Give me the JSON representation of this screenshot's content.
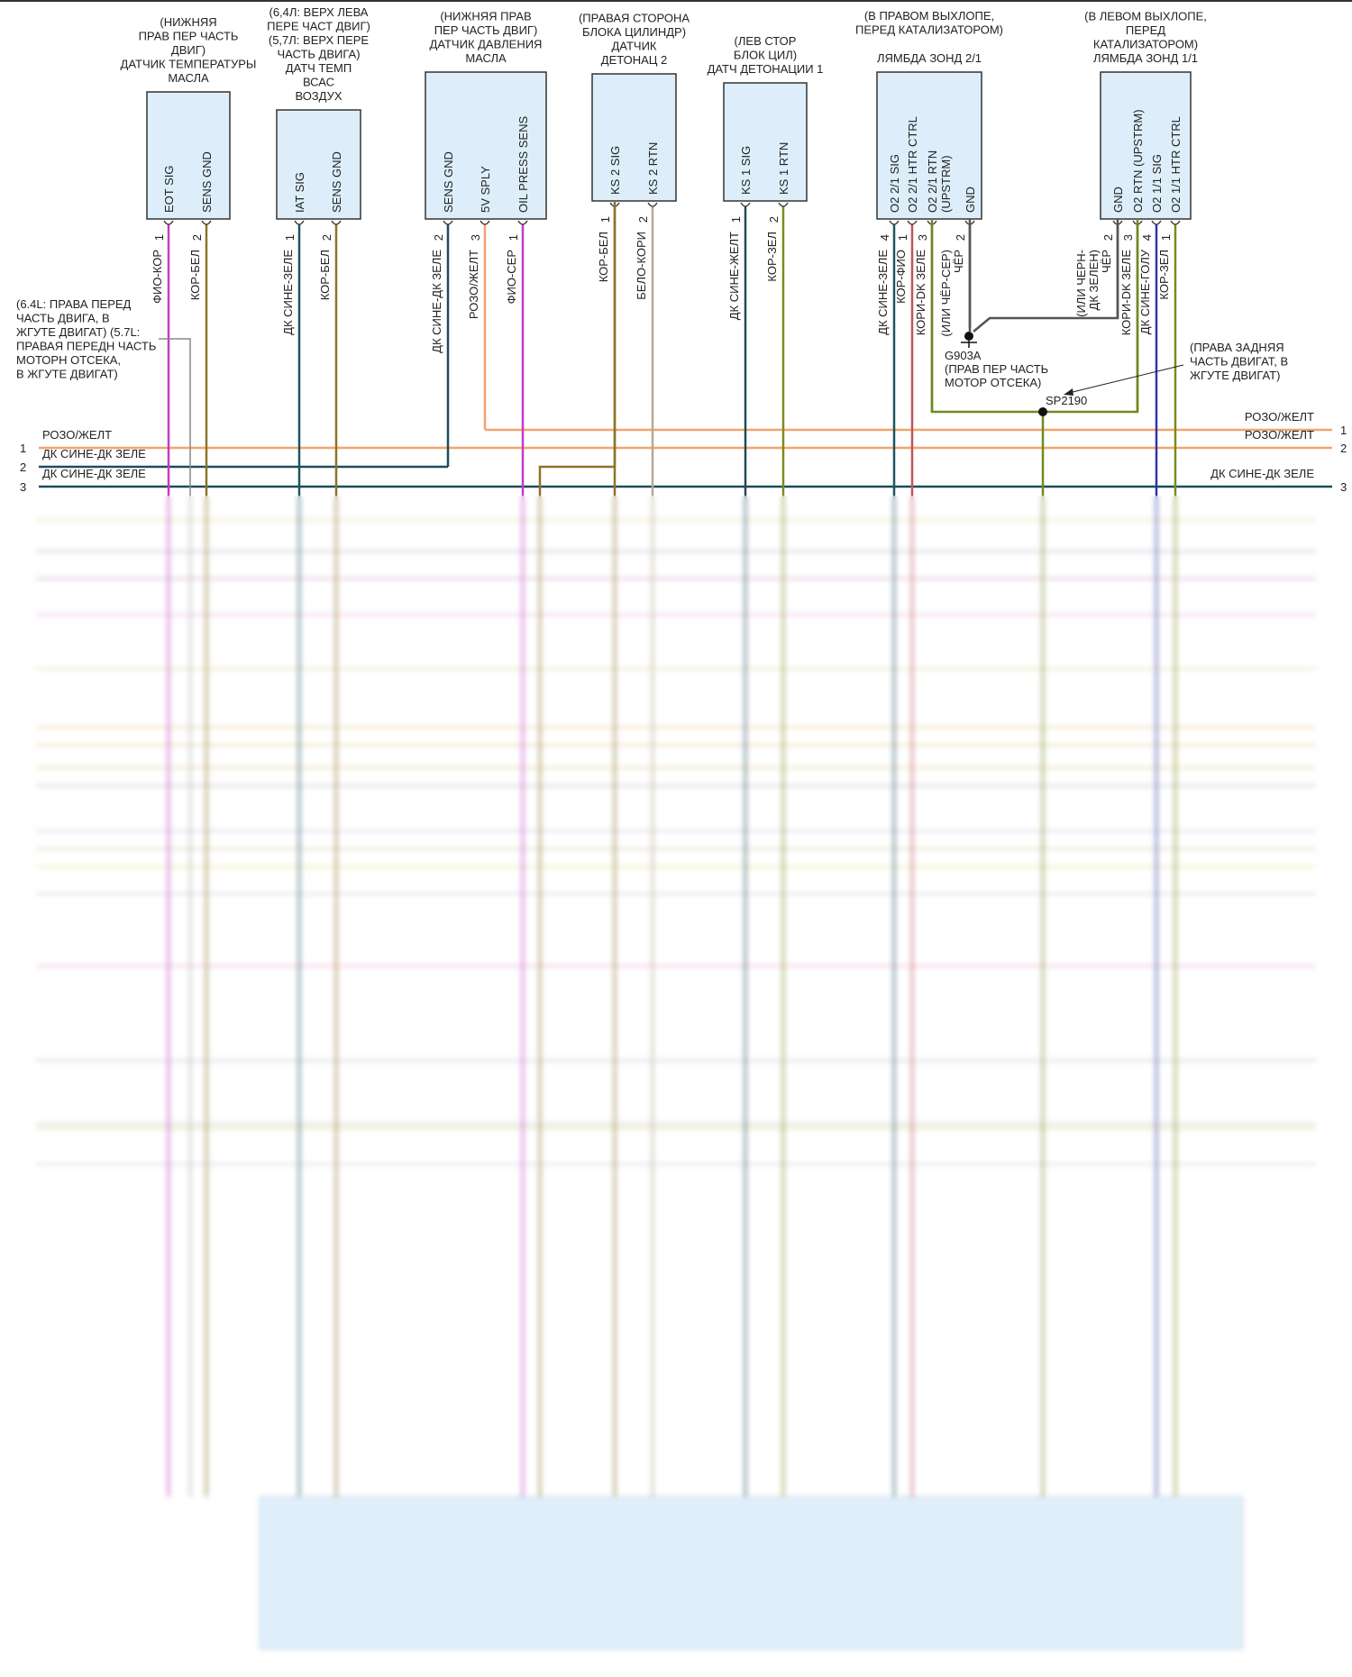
{
  "sensors": [
    {
      "title": [
        "(НИЖНЯЯ",
        "ПРАВ ПЕР ЧАСТЬ",
        "ДВИГ)",
        "ДАТЧИК ТЕМПЕРАТУРЫ",
        "МАСЛА"
      ],
      "pins": [
        {
          "num": "1",
          "name": [
            "EOT SIG"
          ],
          "wire": [
            "ФИО-КОР"
          ],
          "color": "#c23cc4"
        },
        {
          "num": "2",
          "name": [
            "SENS GND"
          ],
          "wire": [
            "КОР-БЕЛ"
          ],
          "color": "#8c7328"
        }
      ]
    },
    {
      "title": [
        "(6,4Л: ВЕРХ ЛЕВА",
        "ПЕРЕ ЧАСТ ДВИГ)",
        "(5,7Л: ВЕРХ ПЕРЕ",
        "ЧАСТЬ ДВИГА)",
        "ДАТЧ ТЕМП",
        "ВСАС",
        "ВОЗДУХ"
      ],
      "pins": [
        {
          "num": "1",
          "name": [
            "IAT SIG"
          ],
          "wire": [
            "ДК СИНЕ-ЗЕЛЕ"
          ],
          "color": "#1d5560"
        },
        {
          "num": "2",
          "name": [
            "SENS GND"
          ],
          "wire": [
            "КОР-БЕЛ"
          ],
          "color": "#8c7328"
        }
      ]
    },
    {
      "title": [
        "(НИЖНЯЯ ПРАВ",
        "ПЕР ЧАСТЬ ДВИГ)",
        "ДАТЧИК ДАВЛЕНИЯ",
        "МАСЛА"
      ],
      "pins": [
        {
          "num": "2",
          "name": [
            "SENS GND"
          ],
          "wire": [
            "ДК СИНЕ-ДК ЗЕЛЕ"
          ],
          "color": "#1d4c5c"
        },
        {
          "num": "3",
          "name": [
            "5V SPLY"
          ],
          "wire": [
            "РОЗО/ЖЕЛТ"
          ],
          "color": "#f2a46e"
        },
        {
          "num": "1",
          "name": [
            "OIL PRESS SENS"
          ],
          "wire": [
            "ФИО-СЕР"
          ],
          "color": "#c23cc4"
        }
      ]
    },
    {
      "title": [
        "(ПРАВАЯ СТОРОНА",
        "БЛОКА ЦИЛИНДР)",
        "ДАТЧИК",
        "ДЕТОНАЦ 2"
      ],
      "pins": [
        {
          "num": "1",
          "name": [
            "KS 2 SIG"
          ],
          "wire": [
            "КОР-БЕЛ"
          ],
          "color": "#8c7328"
        },
        {
          "num": "2",
          "name": [
            "KS 2 RTN"
          ],
          "wire": [
            "БЕЛО-КОРИ"
          ],
          "color": "#b7a890"
        }
      ]
    },
    {
      "title": [
        "(ЛЕВ СТОР",
        "БЛОК ЦИЛ)",
        "ДАТЧ ДЕТОНАЦИИ 1"
      ],
      "pins": [
        {
          "num": "1",
          "name": [
            "KS 1 SIG"
          ],
          "wire": [
            "ДК СИНЕ-ЖЕЛТ"
          ],
          "color": "#24495a"
        },
        {
          "num": "2",
          "name": [
            "KS 1 RTN"
          ],
          "wire": [
            "КОР-ЗЕЛ"
          ],
          "color": "#7d8a1e"
        }
      ]
    },
    {
      "title": [
        "(В ПРАВОМ ВЫХЛОПЕ,",
        "ПЕРЕД КАТАЛИЗАТОРОМ)",
        "ЛЯМБДА ЗОНД 2/1"
      ],
      "pins": [
        {
          "num": "4",
          "name": [
            "O2 2/1 SIG"
          ],
          "wire": [
            "ДК СИНЕ-ЗЕЛЕ"
          ],
          "color": "#1d5560"
        },
        {
          "num": "1",
          "name": [
            "O2 2/1 HTR CTRL"
          ],
          "wire": [
            "КОР-ФИО"
          ],
          "color": "#c2545a"
        },
        {
          "num": "3",
          "name": [
            "O2 2/1 RTN",
            "(UPSTRM)"
          ],
          "wire": [
            "КОРИ-DK ЗЕЛЕ"
          ],
          "color": "#6f8a1e"
        },
        {
          "num": "2",
          "name": [
            "GND"
          ],
          "wire": [
            "(ИЛИ ЧЁР-СЕР)",
            "ЧЁР"
          ],
          "color": "#555555"
        }
      ]
    },
    {
      "title": [
        "(В ЛЕВОМ ВЫХЛОПЕ,",
        "ПЕРЕД",
        "КАТАЛИЗАТОРОМ)",
        "ЛЯМБДА ЗОНД 1/1"
      ],
      "pins": [
        {
          "num": "2",
          "name": [
            "GND"
          ],
          "wire": [
            "(ИЛИ ЧЕРН-",
            "ДК ЗЕЛЕН)",
            "ЧЁР"
          ],
          "color": "#555555"
        },
        {
          "num": "3",
          "name": [
            "O2 RTN (UPSTRM)"
          ],
          "wire": [
            "КОРИ-DK ЗЕЛЕ"
          ],
          "color": "#6f8a1e"
        },
        {
          "num": "4",
          "name": [
            "O2 1/1 SIG"
          ],
          "wire": [
            "ДК СИНЕ-ГОЛУ"
          ],
          "color": "#2f35a8"
        },
        {
          "num": "1",
          "name": [
            "O2 1/1 HTR CTRL"
          ],
          "wire": [
            "КОР-ЗЕЛ"
          ],
          "color": "#7d8a1e"
        }
      ]
    }
  ],
  "left_note": [
    "(6.4L: ПРАВА ПЕРЕД",
    "ЧАСТЬ ДВИГА, В",
    "ЖГУТЕ ДВИГАТ) (5.7L:",
    "ПРАВАЯ ПЕРЕДН ЧАСТЬ",
    "МОТОРН ОТСЕКА,",
    "В ЖГУТЕ ДВИГАТ)"
  ],
  "ground": {
    "id": "G903A",
    "location": [
      "(ПРАВ ПЕР ЧАСТЬ",
      "МОТОР ОТСЕКА)"
    ]
  },
  "splice": {
    "id": "SP2190",
    "note": [
      "(ПРАВА ЗАДНЯЯ",
      "ЧАСТЬ ДВИГАТ, В",
      "ЖГУТЕ ДВИГАТ)"
    ]
  },
  "buses": {
    "left": [
      {
        "num": "1",
        "label": "РОЗО/ЖЕЛТ",
        "color": "#f2a46e"
      },
      {
        "num": "2",
        "label": "ДК СИНЕ-ДК ЗЕЛЕ",
        "color": "#1d4c5c"
      },
      {
        "num": "3",
        "label": "ДК СИНЕ-ДК ЗЕЛЕ",
        "color": "#1d4c5c"
      }
    ],
    "right": [
      {
        "num": "1",
        "label": "РОЗО/ЖЕЛТ"
      },
      {
        "num": "2",
        "label": "РОЗО/ЖЕЛТ"
      },
      {
        "num": "3",
        "label": "ДК СИНЕ-ДК ЗЕЛЕ"
      }
    ]
  },
  "colors": {
    "box_fill": "#ddeefa",
    "ecu_fill": "#cfe6f8",
    "box_stroke": "#333333"
  }
}
